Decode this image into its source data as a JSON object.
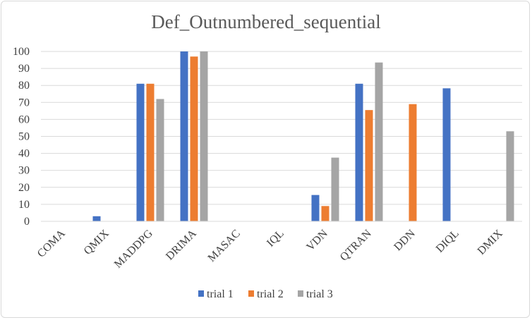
{
  "chart_data": {
    "type": "bar",
    "title": "Def_Outnumbered_sequential",
    "xlabel": "",
    "ylabel": "",
    "ylim": [
      0,
      100
    ],
    "yticks": [
      0,
      10,
      20,
      30,
      40,
      50,
      60,
      70,
      80,
      90,
      100
    ],
    "grid": true,
    "legend": "bottom",
    "categories": [
      "COMA",
      "QMIX",
      "MADDPG",
      "DRIMA",
      "MASAC",
      "IQL",
      "VDN",
      "QTRAN",
      "DDN",
      "DIQL",
      "DMIX"
    ],
    "series": [
      {
        "name": "trial 1",
        "color": "#4472C4",
        "values": [
          0,
          3,
          81,
          100,
          0,
          0,
          15.5,
          81,
          0,
          78.3,
          0
        ]
      },
      {
        "name": "trial 2",
        "color": "#ED7D31",
        "values": [
          0,
          0,
          81,
          97,
          0,
          0,
          9,
          65.5,
          69,
          0,
          0
        ]
      },
      {
        "name": "trial 3",
        "color": "#A5A5A5",
        "values": [
          0,
          0,
          72,
          100,
          0,
          0,
          37.5,
          93.5,
          0,
          0,
          53
        ]
      }
    ]
  }
}
